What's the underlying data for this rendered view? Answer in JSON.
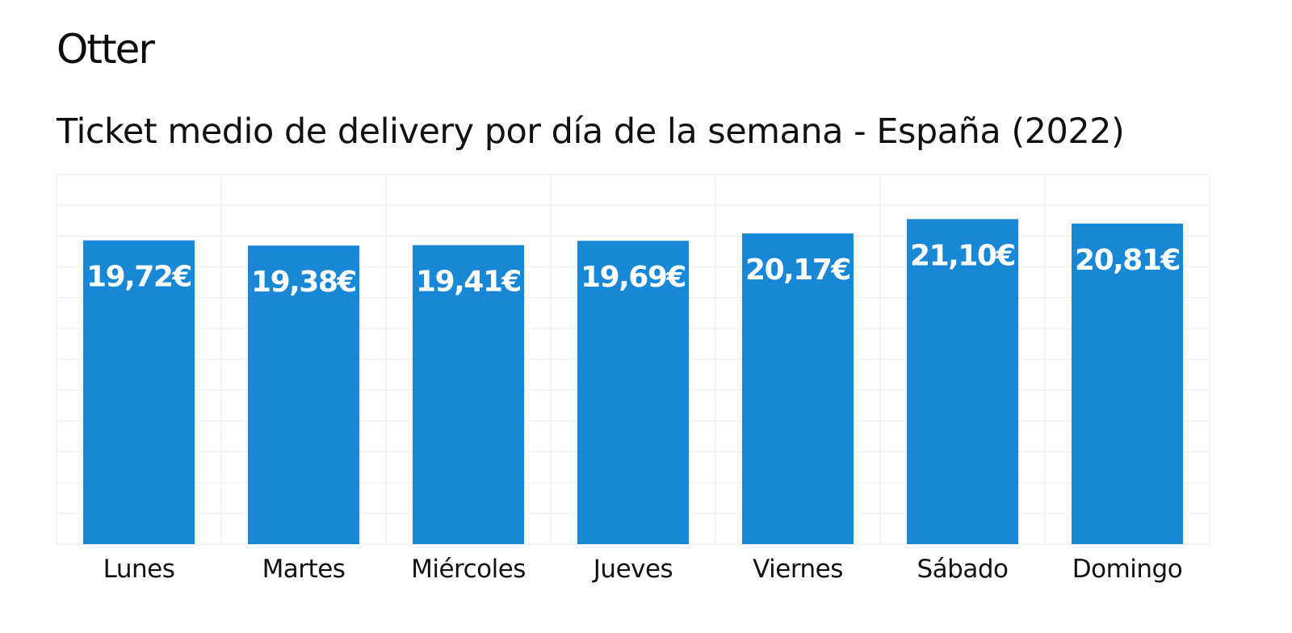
{
  "brand": {
    "logo_text": "Otter"
  },
  "colors": {
    "bar": "#1787D6",
    "grid": "#EEEEEE",
    "label": "#FFFFFF",
    "text": "#111111"
  },
  "chart_data": {
    "type": "bar",
    "title": "Ticket medio de delivery por día de la semana - España (2022)",
    "categories": [
      "Lunes",
      "Martes",
      "Miércoles",
      "Jueves",
      "Viernes",
      "Sábado",
      "Domingo"
    ],
    "values": [
      19.72,
      19.38,
      19.41,
      19.69,
      20.17,
      21.1,
      20.81
    ],
    "data_labels": [
      "19,72€",
      "19,38€",
      "19,41€",
      "19,69€",
      "20,17€",
      "21,10€",
      "20,81€"
    ],
    "ylim": [
      0,
      24
    ],
    "grid": true,
    "legend": "none"
  }
}
